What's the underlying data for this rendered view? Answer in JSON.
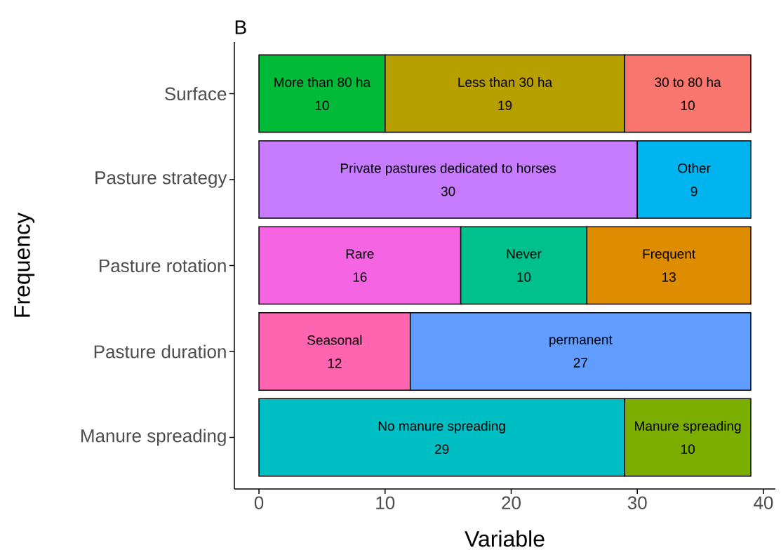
{
  "chart_data": {
    "type": "bar",
    "orientation": "horizontal",
    "stacked": true,
    "title": "B",
    "xlabel": "Variable",
    "ylabel": "Frequency",
    "categories": [
      "Surface",
      "Pasture strategy",
      "Pasture rotation",
      "Pasture duration",
      "Manure spreading"
    ],
    "xlim": [
      -1.95,
      40.95
    ],
    "xticks": [
      0,
      10,
      20,
      30,
      40
    ],
    "data_labels": true,
    "grid": false,
    "series": [
      {
        "name": "More than 80 ha",
        "color": "#00ba38",
        "values": [
          10,
          null,
          null,
          null,
          null
        ]
      },
      {
        "name": "Less than 30 ha",
        "color": "#b79f00",
        "values": [
          19,
          null,
          null,
          null,
          null
        ]
      },
      {
        "name": "30 to 80 ha",
        "color": "#f8766d",
        "values": [
          10,
          null,
          null,
          null,
          null
        ]
      },
      {
        "name": "Private pastures dedicated to horses",
        "color": "#c77cff",
        "values": [
          null,
          30,
          null,
          null,
          null
        ]
      },
      {
        "name": "Other",
        "color": "#00b4f0",
        "values": [
          null,
          9,
          null,
          null,
          null
        ]
      },
      {
        "name": "Rare",
        "color": "#f564e3",
        "values": [
          null,
          null,
          16,
          null,
          null
        ]
      },
      {
        "name": "Never",
        "color": "#00c08b",
        "values": [
          null,
          null,
          10,
          null,
          null
        ]
      },
      {
        "name": "Frequent",
        "color": "#de8c00",
        "values": [
          null,
          null,
          13,
          null,
          null
        ]
      },
      {
        "name": "Seasonal",
        "color": "#ff64b0",
        "values": [
          null,
          null,
          null,
          12,
          null
        ]
      },
      {
        "name": "permanent",
        "color": "#619cff",
        "values": [
          null,
          null,
          null,
          27,
          null
        ]
      },
      {
        "name": "No manure spreading",
        "color": "#00bfc4",
        "values": [
          null,
          null,
          null,
          null,
          29
        ]
      },
      {
        "name": "Manure spreading",
        "color": "#7cae00",
        "values": [
          null,
          null,
          null,
          null,
          10
        ]
      }
    ]
  }
}
